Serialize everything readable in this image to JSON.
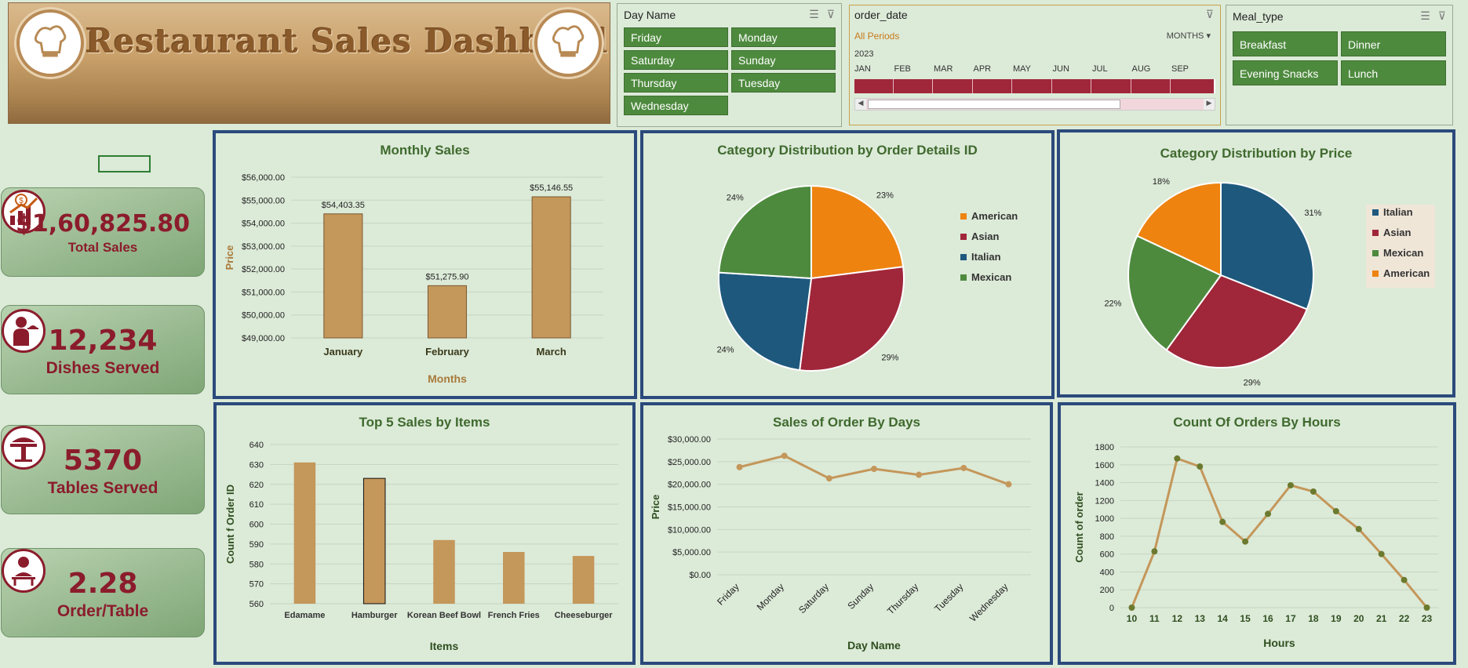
{
  "banner": {
    "title": "Restaurant Sales Dashbord"
  },
  "slicer_day": {
    "header": "Day Name",
    "items": [
      "Friday",
      "Monday",
      "Saturday",
      "Sunday",
      "Thursday",
      "Tuesday",
      "Wednesday"
    ]
  },
  "timeline": {
    "header": "order_date",
    "period_label": "All Periods",
    "unit_label": "MONTHS",
    "year": "2023",
    "months": [
      "JAN",
      "FEB",
      "MAR",
      "APR",
      "MAY",
      "JUN",
      "JUL",
      "AUG",
      "SEP"
    ]
  },
  "slicer_meal": {
    "header": "Meal_type",
    "items": [
      "Breakfast",
      "Dinner",
      "Evening Snacks",
      "Lunch"
    ]
  },
  "kpis": [
    {
      "value": "$1,60,825.80",
      "label": "Total Sales",
      "icon": "sales-growth-icon"
    },
    {
      "value": "12,234",
      "label": "Dishes Served",
      "icon": "waiter-icon"
    },
    {
      "value": "5370",
      "label": "Tables Served",
      "icon": "dining-table-icon"
    },
    {
      "value": "2.28",
      "label": "Order/Table",
      "icon": "order-table-icon"
    }
  ],
  "colors": {
    "bar": "#c4975a",
    "line": "#c4975a",
    "panel_border": "#2b4a7c",
    "slicer_btn": "#4e8a3e",
    "kpi_text": "#8b1c2c",
    "american": "#ee8310",
    "asian": "#a0263a",
    "italian": "#1e587d",
    "mexican": "#4e8a3e"
  },
  "chart_data": [
    {
      "id": "monthly_sales",
      "type": "bar",
      "title": "Monthly Sales",
      "xlabel": "Months",
      "ylabel": "Price",
      "categories": [
        "January",
        "February",
        "March"
      ],
      "values": [
        54403.35,
        51275.9,
        55146.55
      ],
      "data_labels": [
        "$54,403.35",
        "$51,275.90",
        "$55,146.55"
      ],
      "ylim": [
        49000,
        56000
      ],
      "yticks": [
        "$49,000.00",
        "$50,000.00",
        "$51,000.00",
        "$52,000.00",
        "$53,000.00",
        "$54,000.00",
        "$55,000.00",
        "$56,000.00"
      ]
    },
    {
      "id": "category_by_order",
      "type": "pie",
      "title": "Category Distribution by Order Details ID",
      "labels": [
        "American",
        "Asian",
        "Italian",
        "Mexican"
      ],
      "values": [
        23,
        29,
        24,
        24
      ],
      "data_labels": [
        "23%",
        "29%",
        "24%",
        "24%"
      ],
      "legend": "right"
    },
    {
      "id": "category_by_price",
      "type": "pie",
      "title": "Category Distribution by Price",
      "labels": [
        "Italian",
        "Asian",
        "Mexican",
        "American"
      ],
      "values": [
        31,
        29,
        22,
        18
      ],
      "data_labels": [
        "31%",
        "29%",
        "22%",
        "18%"
      ],
      "legend": "right"
    },
    {
      "id": "top5_items",
      "type": "bar",
      "title": "Top 5 Sales by Items",
      "xlabel": "Items",
      "ylabel": "Count f Order ID",
      "categories": [
        "Edamame",
        "Hamburger",
        "Korean Beef Bowl",
        "French Fries",
        "Cheeseburger"
      ],
      "values": [
        631,
        623,
        592,
        586,
        584
      ],
      "ylim": [
        560,
        640
      ],
      "yticks": [
        "560",
        "570",
        "580",
        "590",
        "600",
        "610",
        "620",
        "630",
        "640"
      ]
    },
    {
      "id": "sales_by_days",
      "type": "line",
      "title": "Sales of Order By Days",
      "xlabel": "Day Name",
      "ylabel": "Price",
      "categories": [
        "Friday",
        "Monday",
        "Saturday",
        "Sunday",
        "Thursday",
        "Tuesday",
        "Wednesday"
      ],
      "values": [
        23800,
        26300,
        21300,
        23400,
        22100,
        23600,
        20000
      ],
      "ylim": [
        0,
        30000
      ],
      "yticks": [
        "$0.00",
        "$5,000.00",
        "$10,000.00",
        "$15,000.00",
        "$20,000.00",
        "$25,000.00",
        "$30,000.00"
      ]
    },
    {
      "id": "orders_by_hours",
      "type": "line",
      "title": "Count Of Orders By Hours",
      "xlabel": "Hours",
      "ylabel": "Count of order",
      "categories": [
        "10",
        "11",
        "12",
        "13",
        "14",
        "15",
        "16",
        "17",
        "18",
        "19",
        "20",
        "21",
        "22",
        "23"
      ],
      "values": [
        0,
        630,
        1670,
        1580,
        960,
        740,
        1050,
        1370,
        1300,
        1080,
        880,
        600,
        310,
        0
      ],
      "ylim": [
        0,
        1800
      ],
      "yticks": [
        "0",
        "200",
        "400",
        "600",
        "800",
        "1000",
        "1200",
        "1400",
        "1600",
        "1800"
      ]
    }
  ]
}
